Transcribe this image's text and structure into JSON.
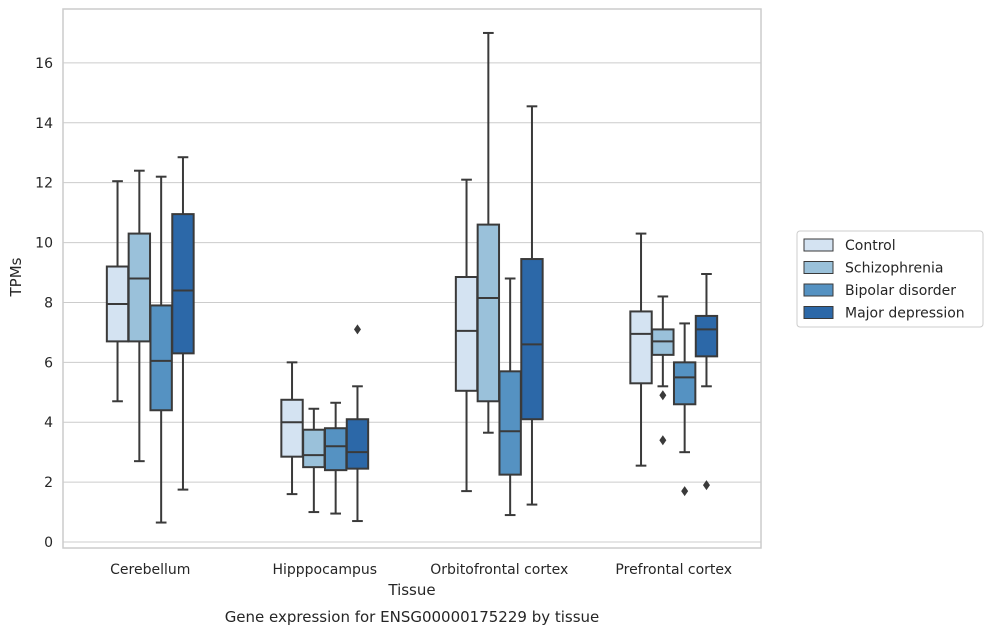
{
  "chart_data": {
    "type": "box",
    "title": "",
    "caption": "Gene expression for ENSG00000175229 by tissue",
    "xlabel": "Tissue",
    "ylabel": "TPMs",
    "ylim": [
      -0.2,
      17.8
    ],
    "yticks": [
      0,
      2,
      4,
      6,
      8,
      10,
      12,
      14,
      16
    ],
    "grid": "horizontal",
    "legend_position": "right-outside",
    "categories": [
      "Cerebellum",
      "Hipppocampus",
      "Orbitofrontal cortex",
      "Prefrontal cortex"
    ],
    "series": [
      {
        "name": "Control",
        "color": "#d4e3f2",
        "boxes": [
          {
            "whislo": 4.7,
            "q1": 6.7,
            "med": 7.95,
            "q3": 9.2,
            "whishi": 12.05,
            "fliers": []
          },
          {
            "whislo": 1.6,
            "q1": 2.85,
            "med": 4.0,
            "q3": 4.75,
            "whishi": 6.0,
            "fliers": []
          },
          {
            "whislo": 1.7,
            "q1": 5.05,
            "med": 7.05,
            "q3": 8.85,
            "whishi": 12.1,
            "fliers": []
          },
          {
            "whislo": 2.55,
            "q1": 5.3,
            "med": 6.95,
            "q3": 7.7,
            "whishi": 10.3,
            "fliers": []
          }
        ]
      },
      {
        "name": "Schizophrenia",
        "color": "#9ac1da",
        "boxes": [
          {
            "whislo": 2.7,
            "q1": 6.7,
            "med": 8.8,
            "q3": 10.3,
            "whishi": 12.4,
            "fliers": []
          },
          {
            "whislo": 1.0,
            "q1": 2.5,
            "med": 2.9,
            "q3": 3.75,
            "whishi": 4.45,
            "fliers": []
          },
          {
            "whislo": 3.65,
            "q1": 4.7,
            "med": 8.15,
            "q3": 10.6,
            "whishi": 17.0,
            "fliers": []
          },
          {
            "whislo": 5.2,
            "q1": 6.25,
            "med": 6.7,
            "q3": 7.1,
            "whishi": 8.2,
            "fliers": [
              4.9,
              3.4
            ]
          }
        ]
      },
      {
        "name": "Bipolar disorder",
        "color": "#5592c2",
        "boxes": [
          {
            "whislo": 0.65,
            "q1": 4.4,
            "med": 6.05,
            "q3": 7.9,
            "whishi": 12.2,
            "fliers": []
          },
          {
            "whislo": 0.95,
            "q1": 2.4,
            "med": 3.2,
            "q3": 3.8,
            "whishi": 4.65,
            "fliers": []
          },
          {
            "whislo": 0.9,
            "q1": 2.25,
            "med": 3.7,
            "q3": 5.7,
            "whishi": 8.8,
            "fliers": []
          },
          {
            "whislo": 3.0,
            "q1": 4.6,
            "med": 5.5,
            "q3": 6.0,
            "whishi": 7.3,
            "fliers": [
              1.7
            ]
          }
        ]
      },
      {
        "name": "Major depression",
        "color": "#2c68a8",
        "boxes": [
          {
            "whislo": 1.75,
            "q1": 6.3,
            "med": 8.4,
            "q3": 10.95,
            "whishi": 12.85,
            "fliers": []
          },
          {
            "whislo": 0.7,
            "q1": 2.45,
            "med": 3.0,
            "q3": 4.1,
            "whishi": 5.2,
            "fliers": [
              7.1
            ]
          },
          {
            "whislo": 1.25,
            "q1": 4.1,
            "med": 6.6,
            "q3": 9.45,
            "whishi": 14.55,
            "fliers": []
          },
          {
            "whislo": 5.2,
            "q1": 6.2,
            "med": 7.1,
            "q3": 7.55,
            "whishi": 8.95,
            "fliers": [
              1.9
            ]
          }
        ]
      }
    ]
  }
}
